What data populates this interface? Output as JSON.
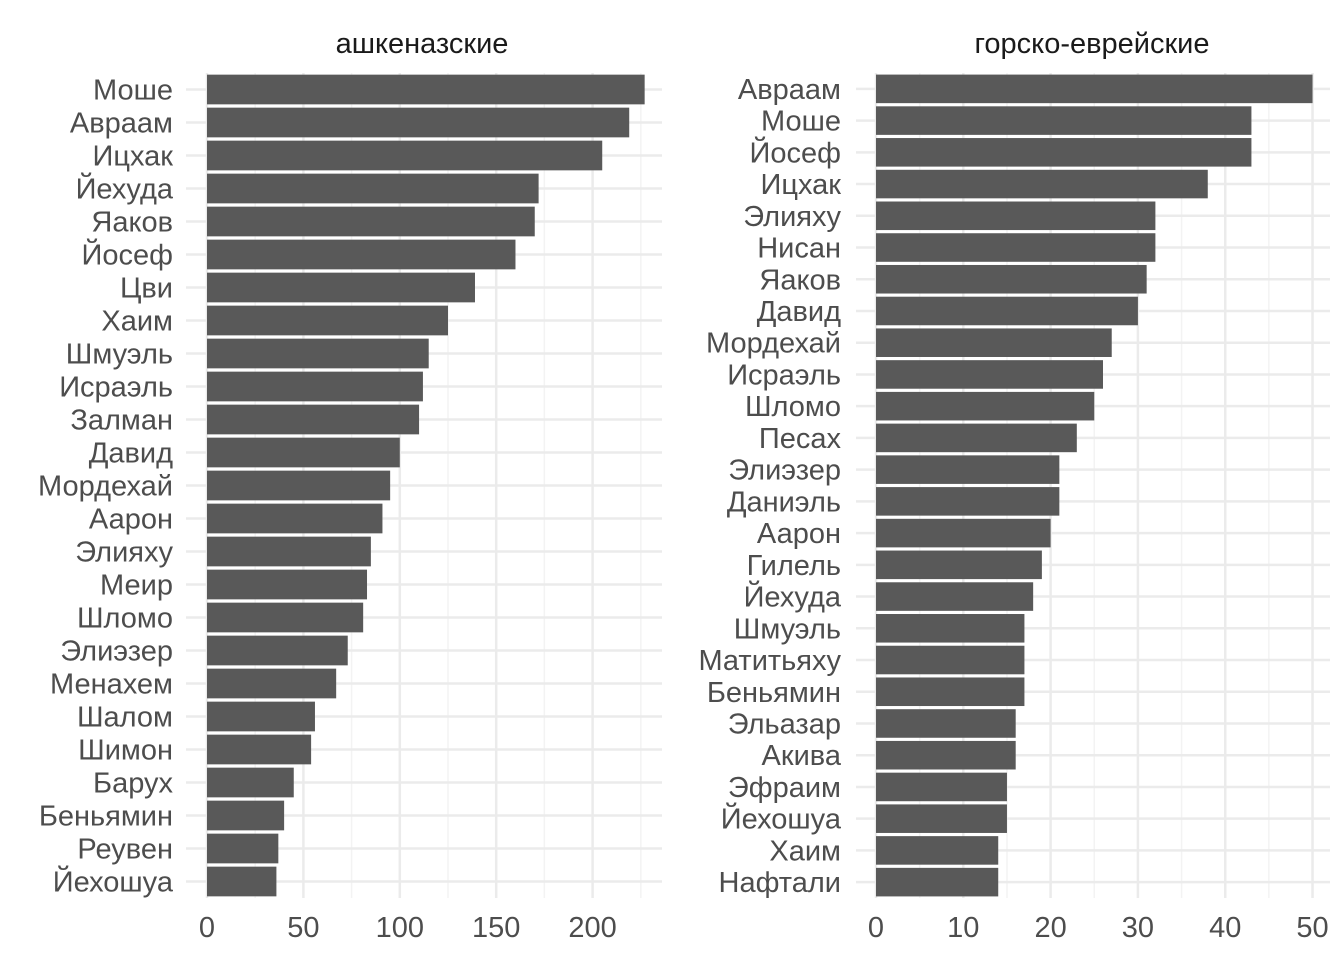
{
  "chart_data": [
    {
      "type": "bar",
      "orientation": "horizontal",
      "title": "ашкеназские",
      "xlabel": "",
      "ylabel": "",
      "xlim": [
        0,
        236
      ],
      "xticks": [
        0,
        50,
        100,
        150,
        200
      ],
      "grid": true,
      "categories": [
        "Моше",
        "Авраам",
        "Ицхак",
        "Йехуда",
        "Яаков",
        "Йосеф",
        "Цви",
        "Хаим",
        "Шмуэль",
        "Исраэль",
        "Залман",
        "Давид",
        "Мордехай",
        "Аарон",
        "Элияху",
        "Меир",
        "Шломо",
        "Элиэзер",
        "Менахем",
        "Шалом",
        "Шимон",
        "Барух",
        "Беньямин",
        "Реувен",
        "Йехошуа"
      ],
      "values": [
        227,
        219,
        205,
        172,
        170,
        160,
        139,
        125,
        115,
        112,
        110,
        100,
        95,
        91,
        85,
        83,
        81,
        73,
        67,
        56,
        54,
        45,
        40,
        37,
        36
      ]
    },
    {
      "type": "bar",
      "orientation": "horizontal",
      "title": "горско-еврейские",
      "xlabel": "",
      "ylabel": "",
      "xlim": [
        0,
        52
      ],
      "xticks": [
        0,
        10,
        20,
        30,
        40,
        50
      ],
      "grid": true,
      "categories": [
        "Авраам",
        "Моше",
        "Йосеф",
        "Ицхак",
        "Элияху",
        "Нисан",
        "Яаков",
        "Давид",
        "Мордехай",
        "Исраэль",
        "Шломо",
        "Песах",
        "Элиэзер",
        "Даниэль",
        "Аарон",
        "Гилель",
        "Йехуда",
        "Шмуэль",
        "Матитьяху",
        "Беньямин",
        "Эльазар",
        "Акива",
        "Эфраим",
        "Йехошуа",
        "Хаим",
        "Нафтали"
      ],
      "values": [
        50,
        43,
        43,
        38,
        32,
        32,
        31,
        30,
        27,
        26,
        25,
        23,
        21,
        21,
        20,
        19,
        18,
        17,
        17,
        17,
        16,
        16,
        15,
        15,
        14,
        14
      ]
    }
  ],
  "colors": {
    "bar": "#595959",
    "grid_major": "#ebebeb",
    "grid_minor": "#f3f3f3",
    "text": "#4d4d4d",
    "title": "#1a1a1a"
  }
}
